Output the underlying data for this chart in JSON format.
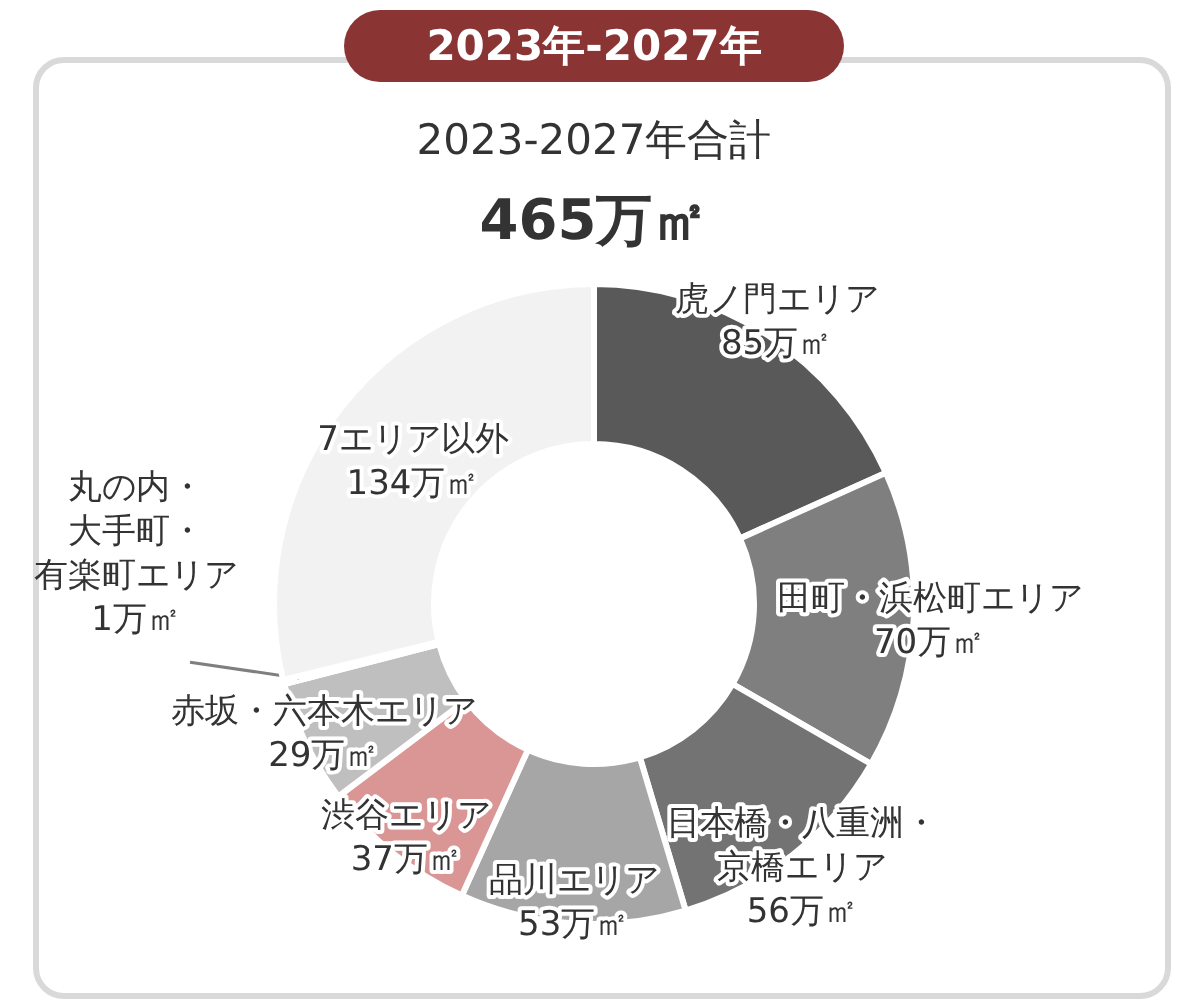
{
  "chart_data": {
    "type": "donut",
    "title": "2023年-2027年",
    "subtitle": "2023-2027年合計",
    "annotations": [
      "465万㎡"
    ],
    "categories": [
      "虎ノ門エリア",
      "田町・浜松町エリア",
      "日本橋・八重洲・京橋エリア",
      "品川エリア",
      "渋谷エリア",
      "赤坂・六本木エリア",
      "丸の内・大手町・有楽町エリア",
      "7エリア以外"
    ],
    "values": [
      85,
      70,
      56,
      53,
      37,
      29,
      1,
      134
    ],
    "colors": [
      "#595959",
      "#7f7f7f",
      "#737373",
      "#a6a6a6",
      "#d99694",
      "#bfbfbf",
      "#d9d9d9",
      "#f2f2f2"
    ],
    "value_labels": [
      "85万㎡",
      "70万㎡",
      "56万㎡",
      "53万㎡",
      "37万㎡",
      "29万㎡",
      "1万㎡",
      "134万㎡"
    ]
  }
}
